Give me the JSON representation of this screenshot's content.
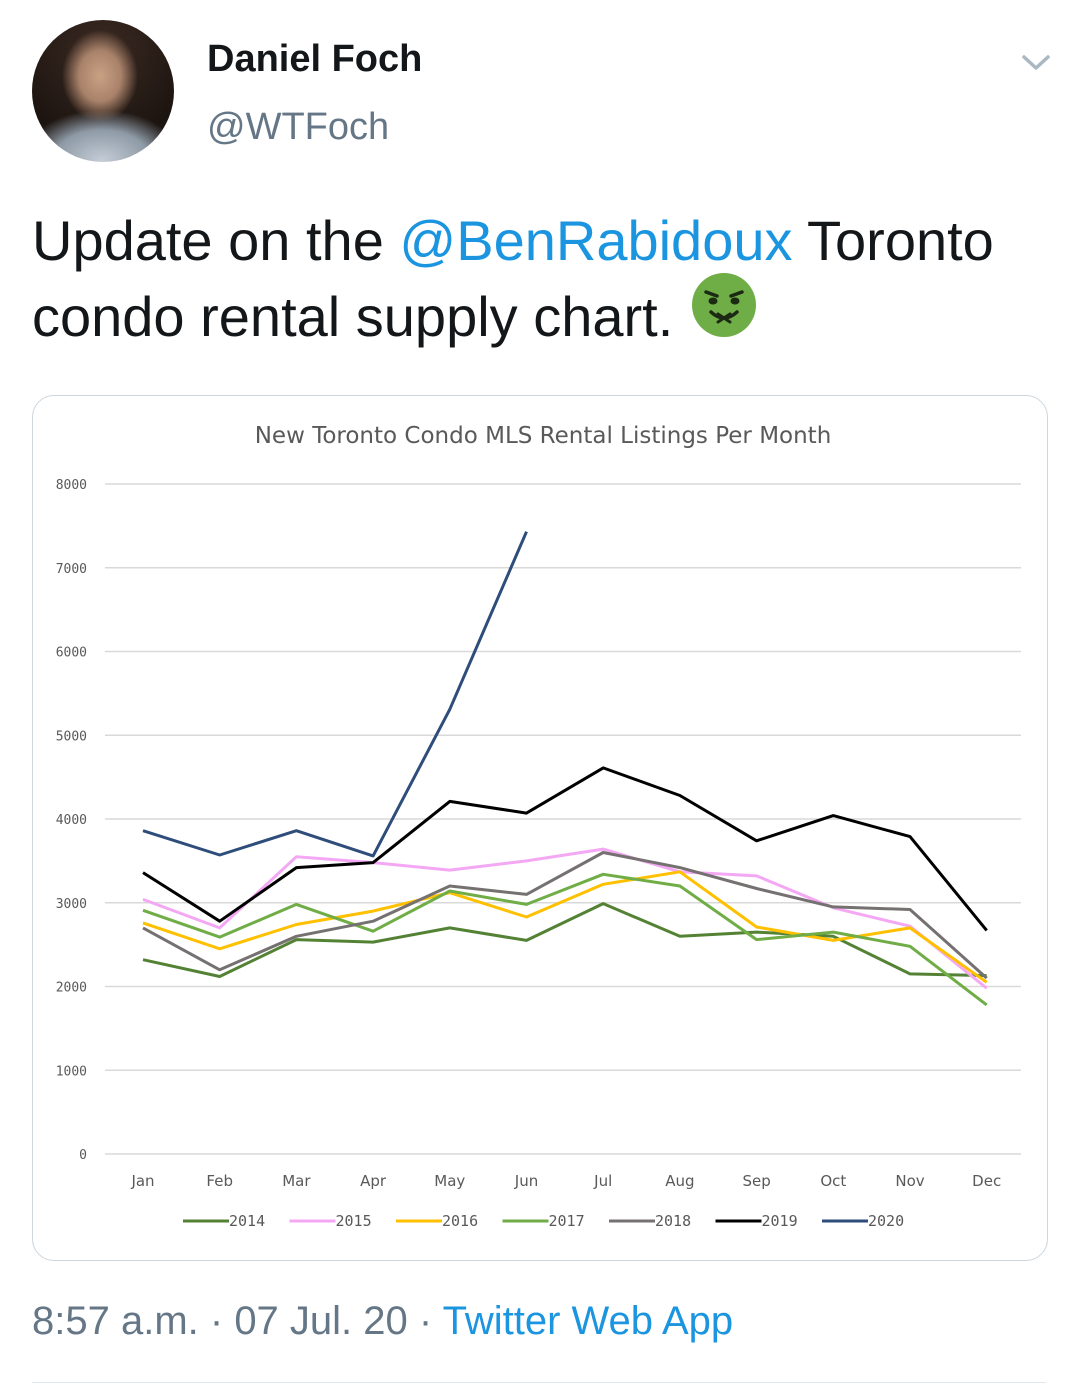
{
  "author": {
    "name": "Daniel Foch",
    "handle": "@WTFoch"
  },
  "icons": {
    "menu": "chevron-down-icon",
    "emoji": "nauseated-face-emoji"
  },
  "tweet": {
    "text_before": "Update on the ",
    "mention": "@BenRabidoux",
    "text_after": " Toronto condo rental supply chart."
  },
  "footer": {
    "time": "8:57 a.m.",
    "sep1": " · ",
    "date": "07 Jul. 20",
    "sep2": " · ",
    "app": "Twitter Web App"
  },
  "colors": {
    "link": "#1b95e0",
    "secondary_text": "#657786",
    "emoji_green": "#6fae46"
  },
  "chart_data": {
    "type": "line",
    "title": "New Toronto Condo MLS Rental Listings Per Month",
    "categories": [
      "Jan",
      "Feb",
      "Mar",
      "Apr",
      "May",
      "Jun",
      "Jul",
      "Aug",
      "Sep",
      "Oct",
      "Nov",
      "Dec"
    ],
    "y_ticks": [
      "0",
      "1000",
      "2000",
      "3000",
      "4000",
      "5000",
      "6000",
      "7000",
      "8000"
    ],
    "ylim": [
      0,
      8000
    ],
    "grid": true,
    "legend_position": "bottom",
    "series": [
      {
        "name": "2014",
        "color": "#548235",
        "values": [
          2320,
          2120,
          2560,
          2530,
          2700,
          2550,
          2990,
          2600,
          2650,
          2600,
          2150,
          2130
        ]
      },
      {
        "name": "2015",
        "color": "#f4a8f4",
        "values": [
          3040,
          2700,
          3550,
          3480,
          3390,
          3500,
          3640,
          3370,
          3320,
          2940,
          2720,
          1980
        ]
      },
      {
        "name": "2016",
        "color": "#ffc000",
        "values": [
          2760,
          2450,
          2740,
          2900,
          3120,
          2830,
          3220,
          3370,
          2710,
          2550,
          2700,
          2050
        ]
      },
      {
        "name": "2017",
        "color": "#70ad47",
        "values": [
          2910,
          2590,
          2980,
          2660,
          3140,
          2980,
          3340,
          3200,
          2560,
          2650,
          2480,
          1780
        ]
      },
      {
        "name": "2018",
        "color": "#767171",
        "values": [
          2700,
          2200,
          2600,
          2780,
          3200,
          3100,
          3600,
          3420,
          3170,
          2950,
          2920,
          2100
        ]
      },
      {
        "name": "2019",
        "color": "#000000",
        "values": [
          3360,
          2780,
          3420,
          3480,
          4210,
          4070,
          4610,
          4280,
          3740,
          4040,
          3790,
          2670
        ]
      },
      {
        "name": "2020",
        "color": "#2e4d7b",
        "values": [
          3860,
          3570,
          3860,
          3560,
          5310,
          7430,
          null,
          null,
          null,
          null,
          null,
          null
        ]
      }
    ]
  }
}
